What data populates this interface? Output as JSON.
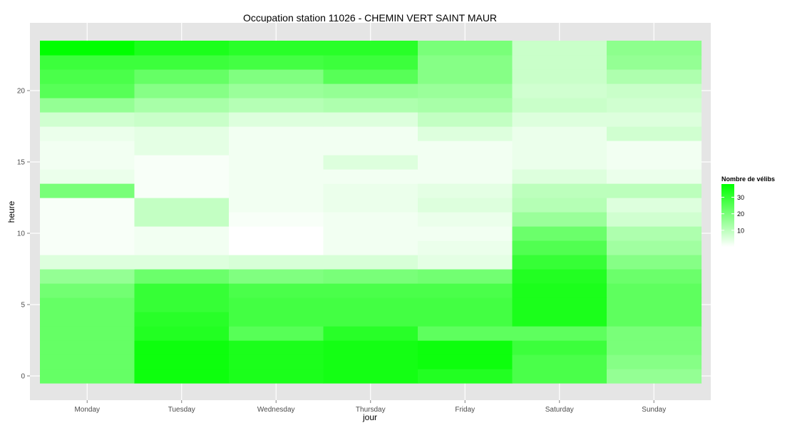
{
  "chart_data": {
    "type": "heatmap",
    "title": "Occupation station 11026 - CHEMIN VERT SAINT MAUR",
    "xlabel": "jour",
    "ylabel": "heure",
    "x": [
      "Monday",
      "Tuesday",
      "Wednesday",
      "Thursday",
      "Friday",
      "Saturday",
      "Sunday"
    ],
    "y": [
      0,
      1,
      2,
      3,
      4,
      5,
      6,
      7,
      8,
      9,
      10,
      11,
      12,
      13,
      14,
      15,
      16,
      17,
      18,
      19,
      20,
      21,
      22,
      23
    ],
    "y_ticks": [
      0,
      5,
      10,
      15,
      20
    ],
    "color_scale": {
      "low": "#ffffff",
      "high": "#00ff00",
      "min": 0,
      "max": 38
    },
    "legend": {
      "title": "Nombre de vélibs",
      "ticks": [
        10,
        20,
        30
      ],
      "position": "right"
    },
    "values": [
      [
        23,
        36,
        34,
        35,
        33,
        27,
        16
      ],
      [
        23,
        36,
        34,
        35,
        36,
        27,
        18
      ],
      [
        23,
        36,
        34,
        35,
        36,
        29,
        20
      ],
      [
        23,
        33,
        25,
        32,
        24,
        24,
        20
      ],
      [
        23,
        32,
        28,
        28,
        28,
        34,
        24
      ],
      [
        23,
        30,
        28,
        28,
        28,
        34,
        24
      ],
      [
        21,
        30,
        27,
        27,
        27,
        34,
        24
      ],
      [
        16,
        22,
        19,
        20,
        21,
        33,
        22
      ],
      [
        5,
        5,
        6,
        6,
        4,
        30,
        18
      ],
      [
        1,
        2,
        0,
        2,
        3,
        26,
        14
      ],
      [
        1,
        2,
        0,
        2,
        2,
        22,
        12
      ],
      [
        1,
        9,
        1,
        2,
        3,
        15,
        7
      ],
      [
        1,
        9,
        2,
        3,
        5,
        11,
        5
      ],
      [
        20,
        1,
        2,
        3,
        4,
        10,
        10
      ],
      [
        3,
        1,
        2,
        2,
        2,
        5,
        3
      ],
      [
        2,
        1,
        2,
        5,
        2,
        3,
        2
      ],
      [
        2,
        4,
        2,
        2,
        2,
        3,
        2
      ],
      [
        3,
        4,
        2,
        2,
        5,
        3,
        7
      ],
      [
        7,
        8,
        5,
        5,
        9,
        5,
        5
      ],
      [
        16,
        13,
        11,
        12,
        13,
        8,
        7
      ],
      [
        25,
        18,
        15,
        16,
        15,
        7,
        8
      ],
      [
        27,
        23,
        19,
        25,
        18,
        8,
        12
      ],
      [
        29,
        29,
        28,
        29,
        18,
        8,
        16
      ],
      [
        38,
        34,
        32,
        32,
        20,
        8,
        17
      ]
    ]
  }
}
